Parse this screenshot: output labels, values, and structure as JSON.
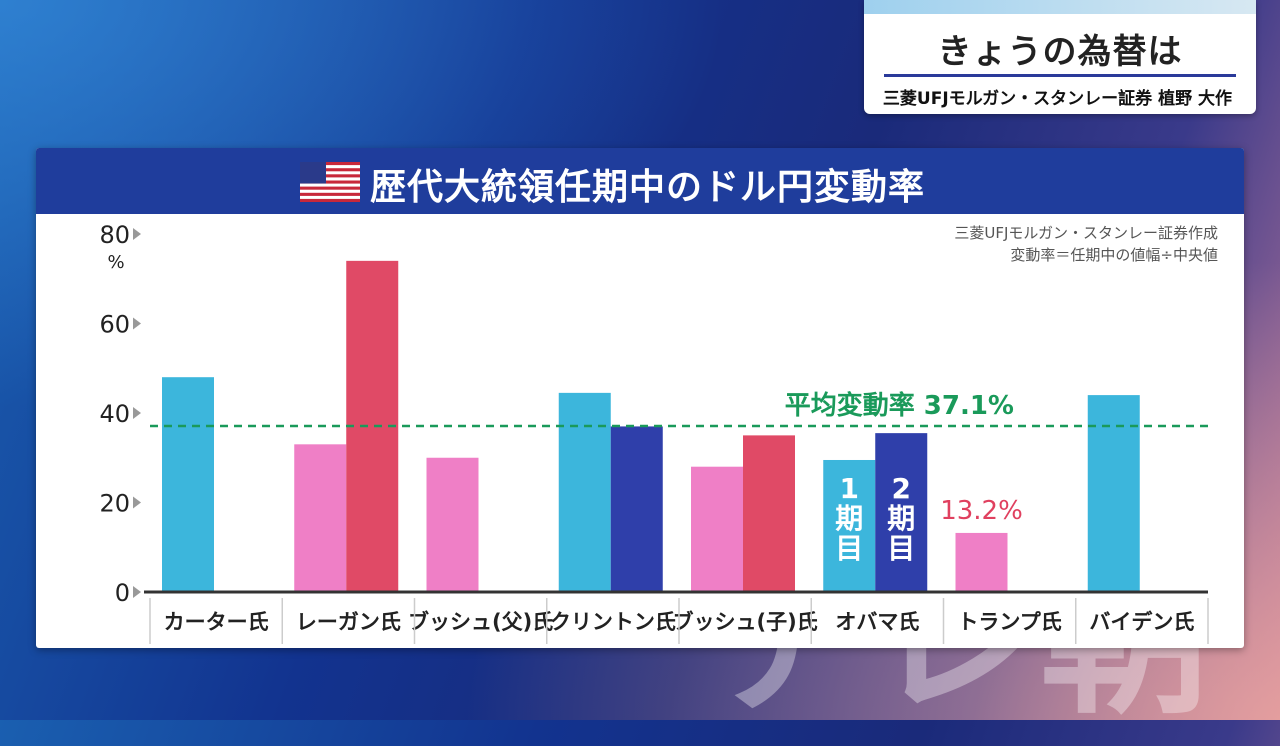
{
  "caption": {
    "title": "きょうの為替は",
    "speaker": "三菱UFJモルガン・スタンレー証券 植野 大作"
  },
  "panel": {
    "title": "歴代大統領任期中のドル円変動率",
    "flag_icon": "us-flag-icon",
    "source": "三菱UFJモルガン・スタンレー証券作成",
    "definition": "変動率＝任期中の値幅÷中央値"
  },
  "colors": {
    "cyan": "#3cb6dc",
    "pink": "#ef7fc6",
    "red": "#e04a66",
    "navy": "#2f3faa",
    "average": "#1a9a5a",
    "header": "#1f3d9c"
  },
  "chart_data": {
    "type": "bar",
    "title": "歴代大統領任期中のドル円変動率",
    "ylim": [
      0,
      80
    ],
    "yticks": [
      0,
      20,
      40,
      60,
      80
    ],
    "yunit": "%",
    "categories": [
      "カーター氏",
      "レーガン氏",
      "ブッシュ(父)氏",
      "クリントン氏",
      "ブッシュ(子)氏",
      "オバマ氏",
      "トランプ氏",
      "バイデン氏"
    ],
    "bars": [
      {
        "category": "カーター氏",
        "slot": 0,
        "value": 48,
        "color": "cyan"
      },
      {
        "category": "レーガン氏",
        "slot": 0,
        "value": 33,
        "color": "pink"
      },
      {
        "category": "レーガン氏",
        "slot": 1,
        "value": 74,
        "color": "red"
      },
      {
        "category": "ブッシュ(父)氏",
        "slot": 0,
        "value": 30,
        "color": "pink"
      },
      {
        "category": "クリントン氏",
        "slot": 0,
        "value": 44.5,
        "color": "cyan"
      },
      {
        "category": "クリントン氏",
        "slot": 1,
        "value": 37,
        "color": "navy"
      },
      {
        "category": "ブッシュ(子)氏",
        "slot": 0,
        "value": 28,
        "color": "pink"
      },
      {
        "category": "ブッシュ(子)氏",
        "slot": 1,
        "value": 35,
        "color": "red"
      },
      {
        "category": "オバマ氏",
        "slot": 0,
        "value": 29.5,
        "color": "cyan",
        "label": "1期目"
      },
      {
        "category": "オバマ氏",
        "slot": 1,
        "value": 35.5,
        "color": "navy",
        "label": "2期目"
      },
      {
        "category": "トランプ氏",
        "slot": 0,
        "value": 13.2,
        "color": "pink"
      },
      {
        "category": "バイデン氏",
        "slot": 0,
        "value": 44,
        "color": "cyan"
      }
    ],
    "average": {
      "value": 37.1,
      "label": "平均変動率 37.1%",
      "style": "dashed"
    },
    "annotations": [
      {
        "category": "トランプ氏",
        "text": "13.2%"
      }
    ]
  },
  "watermark": "テレ朝"
}
